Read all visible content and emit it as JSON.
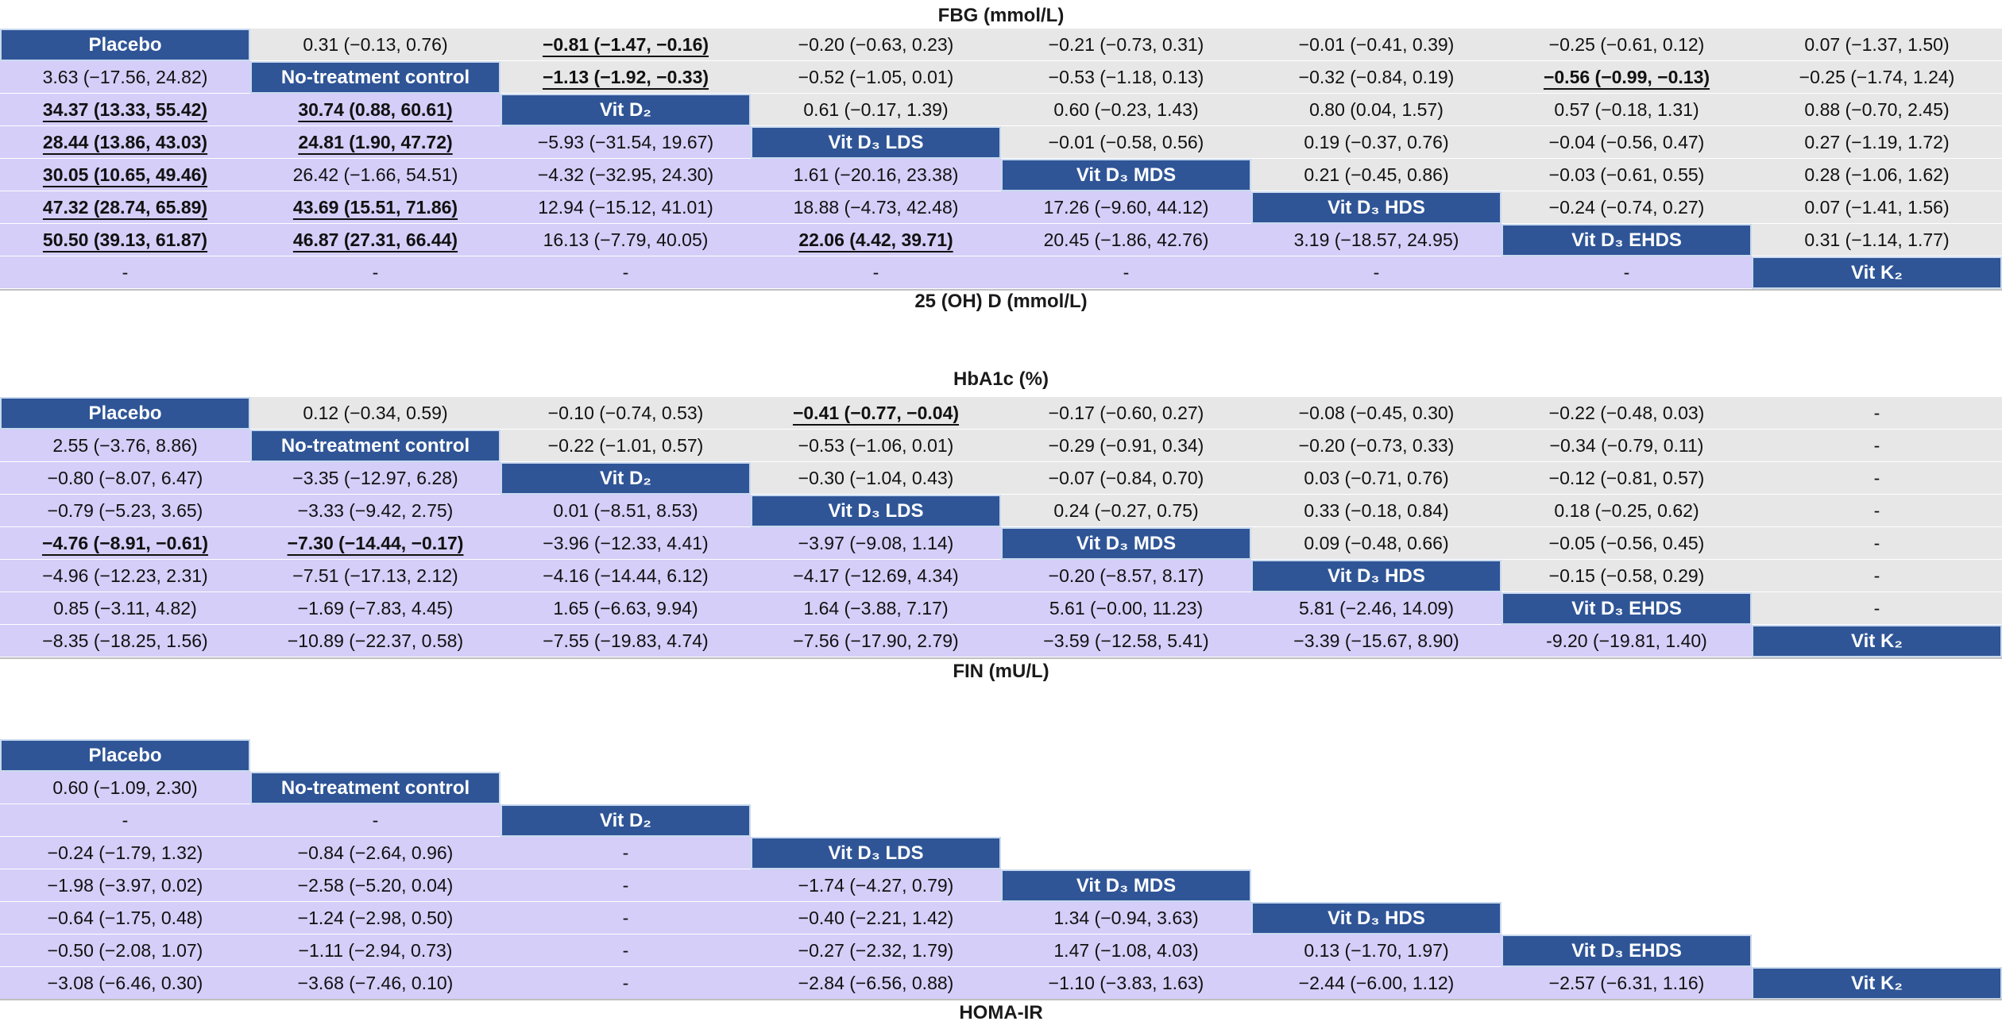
{
  "captions": {
    "fbg": "FBG (mmol/L)",
    "vitd": "25 (OH) D (mmol/L)",
    "hba1c": "HbA1c (%)",
    "fin": "FIN (mU/L)",
    "homa": "HOMA-IR"
  },
  "treatments": [
    "Placebo",
    "No-treatment control",
    "Vit D₂",
    "Vit D₃ LDS",
    "Vit D₃ MDS",
    "Vit D₃ HDS",
    "Vit D₃ EHDS",
    "Vit K₂"
  ],
  "colors": {
    "diag_bg": "#2f5597",
    "lower_bg": "#d4cef8",
    "upper_bg": "#e7e7e7"
  },
  "matrices": [
    {
      "upper_label": "FBG (mmol/L)",
      "lower_label": "25 (OH) D (mmol/L)",
      "rows": [
        [
          {
            "k": "d"
          },
          {
            "v": "0.31 (−0.13, 0.76)"
          },
          {
            "v": "−0.81 (−1.47, −0.16)",
            "s": true
          },
          {
            "v": "−0.20 (−0.63, 0.23)"
          },
          {
            "v": "−0.21 (−0.73, 0.31)"
          },
          {
            "v": "−0.01 (−0.41, 0.39)"
          },
          {
            "v": "−0.25 (−0.61, 0.12)"
          },
          {
            "v": "0.07 (−1.37, 1.50)"
          }
        ],
        [
          {
            "v": "3.63 (−17.56, 24.82)"
          },
          {
            "k": "d"
          },
          {
            "v": "−1.13 (−1.92, −0.33)",
            "s": true
          },
          {
            "v": "−0.52 (−1.05, 0.01)"
          },
          {
            "v": "−0.53 (−1.18, 0.13)"
          },
          {
            "v": "−0.32 (−0.84, 0.19)"
          },
          {
            "v": "−0.56 (−0.99, −0.13)",
            "s": true
          },
          {
            "v": "−0.25 (−1.74, 1.24)"
          }
        ],
        [
          {
            "v": "34.37 (13.33, 55.42)",
            "s": true
          },
          {
            "v": "30.74 (0.88, 60.61)",
            "s": true
          },
          {
            "k": "d"
          },
          {
            "v": "0.61 (−0.17, 1.39)"
          },
          {
            "v": "0.60 (−0.23, 1.43)"
          },
          {
            "v": "0.80 (0.04, 1.57)"
          },
          {
            "v": "0.57 (−0.18, 1.31)"
          },
          {
            "v": "0.88 (−0.70, 2.45)"
          }
        ],
        [
          {
            "v": "28.44 (13.86, 43.03)",
            "s": true
          },
          {
            "v": "24.81 (1.90, 47.72)",
            "s": true
          },
          {
            "v": "−5.93 (−31.54, 19.67)"
          },
          {
            "k": "d"
          },
          {
            "v": "−0.01 (−0.58, 0.56)"
          },
          {
            "v": "0.19 (−0.37, 0.76)"
          },
          {
            "v": "−0.04 (−0.56, 0.47)"
          },
          {
            "v": "0.27 (−1.19, 1.72)"
          }
        ],
        [
          {
            "v": "30.05 (10.65, 49.46)",
            "s": true
          },
          {
            "v": "26.42 (−1.66, 54.51)"
          },
          {
            "v": "−4.32 (−32.95, 24.30)"
          },
          {
            "v": "1.61 (−20.16, 23.38)"
          },
          {
            "k": "d"
          },
          {
            "v": "0.21 (−0.45, 0.86)"
          },
          {
            "v": "−0.03 (−0.61, 0.55)"
          },
          {
            "v": "0.28 (−1.06, 1.62)"
          }
        ],
        [
          {
            "v": "47.32 (28.74, 65.89)",
            "s": true
          },
          {
            "v": "43.69 (15.51, 71.86)",
            "s": true
          },
          {
            "v": "12.94 (−15.12, 41.01)"
          },
          {
            "v": "18.88 (−4.73, 42.48)"
          },
          {
            "v": "17.26 (−9.60, 44.12)"
          },
          {
            "k": "d"
          },
          {
            "v": "−0.24 (−0.74, 0.27)"
          },
          {
            "v": "0.07 (−1.41, 1.56)"
          }
        ],
        [
          {
            "v": "50.50 (39.13, 61.87)",
            "s": true
          },
          {
            "v": "46.87 (27.31, 66.44)",
            "s": true
          },
          {
            "v": "16.13 (−7.79, 40.05)"
          },
          {
            "v": "22.06 (4.42, 39.71)",
            "s": true
          },
          {
            "v": "20.45 (−1.86, 42.76)"
          },
          {
            "v": "3.19 (−18.57, 24.95)"
          },
          {
            "k": "d"
          },
          {
            "v": "0.31 (−1.14, 1.77)"
          }
        ],
        [
          {
            "v": "-"
          },
          {
            "v": "-"
          },
          {
            "v": "-"
          },
          {
            "v": "-"
          },
          {
            "v": "-"
          },
          {
            "v": "-"
          },
          {
            "v": "-"
          },
          {
            "k": "d"
          }
        ]
      ]
    },
    {
      "upper_label": "HbA1c (%)",
      "lower_label": "FIN (mU/L)",
      "rows": [
        [
          {
            "k": "d"
          },
          {
            "v": "0.12 (−0.34, 0.59)"
          },
          {
            "v": "−0.10 (−0.74, 0.53)"
          },
          {
            "v": "−0.41 (−0.77, −0.04)",
            "s": true
          },
          {
            "v": "−0.17 (−0.60, 0.27)"
          },
          {
            "v": "−0.08 (−0.45, 0.30)"
          },
          {
            "v": "−0.22 (−0.48, 0.03)"
          },
          {
            "v": "-"
          }
        ],
        [
          {
            "v": "2.55 (−3.76, 8.86)"
          },
          {
            "k": "d"
          },
          {
            "v": "−0.22 (−1.01, 0.57)"
          },
          {
            "v": "−0.53 (−1.06, 0.01)"
          },
          {
            "v": "−0.29 (−0.91, 0.34)"
          },
          {
            "v": "−0.20 (−0.73, 0.33)"
          },
          {
            "v": "−0.34 (−0.79, 0.11)"
          },
          {
            "v": "-"
          }
        ],
        [
          {
            "v": "−0.80 (−8.07, 6.47)"
          },
          {
            "v": "−3.35 (−12.97, 6.28)"
          },
          {
            "k": "d"
          },
          {
            "v": "−0.30 (−1.04, 0.43)"
          },
          {
            "v": "−0.07 (−0.84, 0.70)"
          },
          {
            "v": "0.03 (−0.71, 0.76)"
          },
          {
            "v": "−0.12 (−0.81, 0.57)"
          },
          {
            "v": "-"
          }
        ],
        [
          {
            "v": "−0.79 (−5.23, 3.65)"
          },
          {
            "v": "−3.33 (−9.42, 2.75)"
          },
          {
            "v": "0.01 (−8.51, 8.53)"
          },
          {
            "k": "d"
          },
          {
            "v": "0.24 (−0.27, 0.75)"
          },
          {
            "v": "0.33 (−0.18, 0.84)"
          },
          {
            "v": "0.18 (−0.25, 0.62)"
          },
          {
            "v": "-"
          }
        ],
        [
          {
            "v": "−4.76 (−8.91, −0.61)",
            "s": true
          },
          {
            "v": "−7.30 (−14.44, −0.17)",
            "s": true
          },
          {
            "v": "−3.96 (−12.33, 4.41)"
          },
          {
            "v": "−3.97 (−9.08, 1.14)"
          },
          {
            "k": "d"
          },
          {
            "v": "0.09 (−0.48, 0.66)"
          },
          {
            "v": "−0.05 (−0.56, 0.45)"
          },
          {
            "v": "-"
          }
        ],
        [
          {
            "v": "−4.96 (−12.23, 2.31)"
          },
          {
            "v": "−7.51 (−17.13, 2.12)"
          },
          {
            "v": "−4.16 (−14.44, 6.12)"
          },
          {
            "v": "−4.17 (−12.69, 4.34)"
          },
          {
            "v": "−0.20 (−8.57, 8.17)"
          },
          {
            "k": "d"
          },
          {
            "v": "−0.15 (−0.58, 0.29)"
          },
          {
            "v": "-"
          }
        ],
        [
          {
            "v": "0.85 (−3.11, 4.82)"
          },
          {
            "v": "−1.69 (−7.83, 4.45)"
          },
          {
            "v": "1.65 (−6.63, 9.94)"
          },
          {
            "v": "1.64 (−3.88, 7.17)"
          },
          {
            "v": "5.61 (−0.00, 11.23)"
          },
          {
            "v": "5.81 (−2.46, 14.09)"
          },
          {
            "k": "d"
          },
          {
            "v": "-"
          }
        ],
        [
          {
            "v": "−8.35 (−18.25, 1.56)"
          },
          {
            "v": "−10.89 (−22.37, 0.58)"
          },
          {
            "v": "−7.55 (−19.83, 4.74)"
          },
          {
            "v": "−7.56 (−17.90, 2.79)"
          },
          {
            "v": "−3.59 (−12.58, 5.41)"
          },
          {
            "v": "−3.39 (−15.67, 8.90)"
          },
          {
            "v": "-9.20 (−19.81, 1.40)"
          },
          {
            "k": "d"
          }
        ]
      ]
    },
    {
      "upper_label": "",
      "lower_label": "HOMA-IR",
      "rows": [
        [
          {
            "k": "d"
          },
          {
            "k": "b"
          },
          {
            "k": "b"
          },
          {
            "k": "b"
          },
          {
            "k": "b"
          },
          {
            "k": "b"
          },
          {
            "k": "b"
          },
          {
            "k": "b"
          }
        ],
        [
          {
            "v": "0.60 (−1.09, 2.30)"
          },
          {
            "k": "d"
          },
          {
            "k": "b"
          },
          {
            "k": "b"
          },
          {
            "k": "b"
          },
          {
            "k": "b"
          },
          {
            "k": "b"
          },
          {
            "k": "b"
          }
        ],
        [
          {
            "v": "-"
          },
          {
            "v": "-"
          },
          {
            "k": "d"
          },
          {
            "k": "b"
          },
          {
            "k": "b"
          },
          {
            "k": "b"
          },
          {
            "k": "b"
          },
          {
            "k": "b"
          }
        ],
        [
          {
            "v": "−0.24 (−1.79, 1.32)"
          },
          {
            "v": "−0.84 (−2.64, 0.96)"
          },
          {
            "v": "-"
          },
          {
            "k": "d"
          },
          {
            "k": "b"
          },
          {
            "k": "b"
          },
          {
            "k": "b"
          },
          {
            "k": "b"
          }
        ],
        [
          {
            "v": "−1.98 (−3.97, 0.02)"
          },
          {
            "v": "−2.58 (−5.20, 0.04)"
          },
          {
            "v": "-"
          },
          {
            "v": "−1.74 (−4.27, 0.79)"
          },
          {
            "k": "d"
          },
          {
            "k": "b"
          },
          {
            "k": "b"
          },
          {
            "k": "b"
          }
        ],
        [
          {
            "v": "−0.64 (−1.75, 0.48)"
          },
          {
            "v": "−1.24 (−2.98, 0.50)"
          },
          {
            "v": "-"
          },
          {
            "v": "−0.40 (−2.21, 1.42)"
          },
          {
            "v": "1.34 (−0.94, 3.63)"
          },
          {
            "k": "d"
          },
          {
            "k": "b"
          },
          {
            "k": "b"
          }
        ],
        [
          {
            "v": "−0.50 (−2.08, 1.07)"
          },
          {
            "v": "−1.11 (−2.94, 0.73)"
          },
          {
            "v": "-"
          },
          {
            "v": "−0.27 (−2.32, 1.79)"
          },
          {
            "v": "1.47 (−1.08, 4.03)"
          },
          {
            "v": "0.13 (−1.70, 1.97)"
          },
          {
            "k": "d"
          },
          {
            "k": "b"
          }
        ],
        [
          {
            "v": "−3.08 (−6.46, 0.30)"
          },
          {
            "v": "−3.68 (−7.46, 0.10)"
          },
          {
            "v": "-"
          },
          {
            "v": "−2.84 (−6.56, 0.88)"
          },
          {
            "v": "−1.10 (−3.83, 1.63)"
          },
          {
            "v": "−2.44 (−6.00, 1.12)"
          },
          {
            "v": "−2.57 (−6.31, 1.16)"
          },
          {
            "k": "d"
          }
        ]
      ]
    }
  ]
}
